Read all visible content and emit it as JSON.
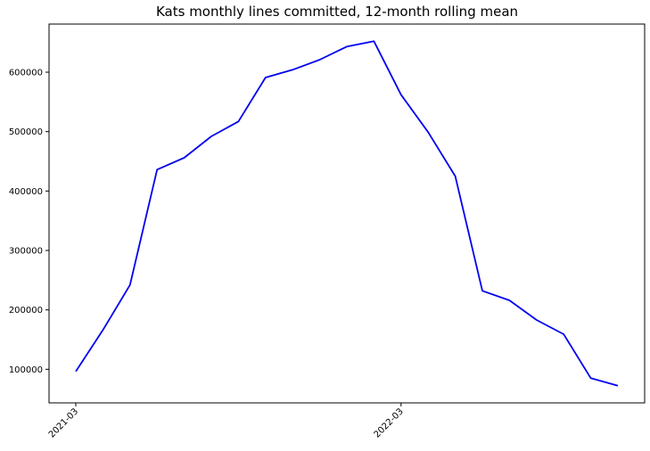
{
  "chart_data": {
    "type": "line",
    "title": "Kats monthly lines committed, 12-month rolling mean",
    "xlabel": "",
    "ylabel": "",
    "x_start": "2021-03",
    "x": [
      "2021-03",
      "2021-04",
      "2021-05",
      "2021-06",
      "2021-07",
      "2021-08",
      "2021-09",
      "2021-10",
      "2021-11",
      "2021-12",
      "2022-01",
      "2022-02",
      "2022-03",
      "2022-04",
      "2022-05",
      "2022-06",
      "2022-07",
      "2022-08",
      "2022-09",
      "2022-10",
      "2022-11",
      "2022-12"
    ],
    "series": [
      {
        "color": "#0000ee",
        "values": [
          96500,
          166000,
          242000,
          436000,
          456000,
          492000,
          517000,
          591000,
          604000,
          621000,
          643000,
          652000,
          562000,
          499000,
          425000,
          232000,
          216000,
          183000,
          159000,
          85000,
          72500,
          null
        ]
      }
    ],
    "x_ticks": [
      "2021-03",
      "2022-03"
    ],
    "y_ticks": [
      100000,
      200000,
      300000,
      400000,
      500000,
      600000
    ],
    "y_tick_labels": [
      "100000",
      "200000",
      "300000",
      "400000",
      "500000",
      "600000"
    ],
    "ylim": [
      43500,
      681000
    ],
    "grid": false,
    "legend": "none"
  }
}
